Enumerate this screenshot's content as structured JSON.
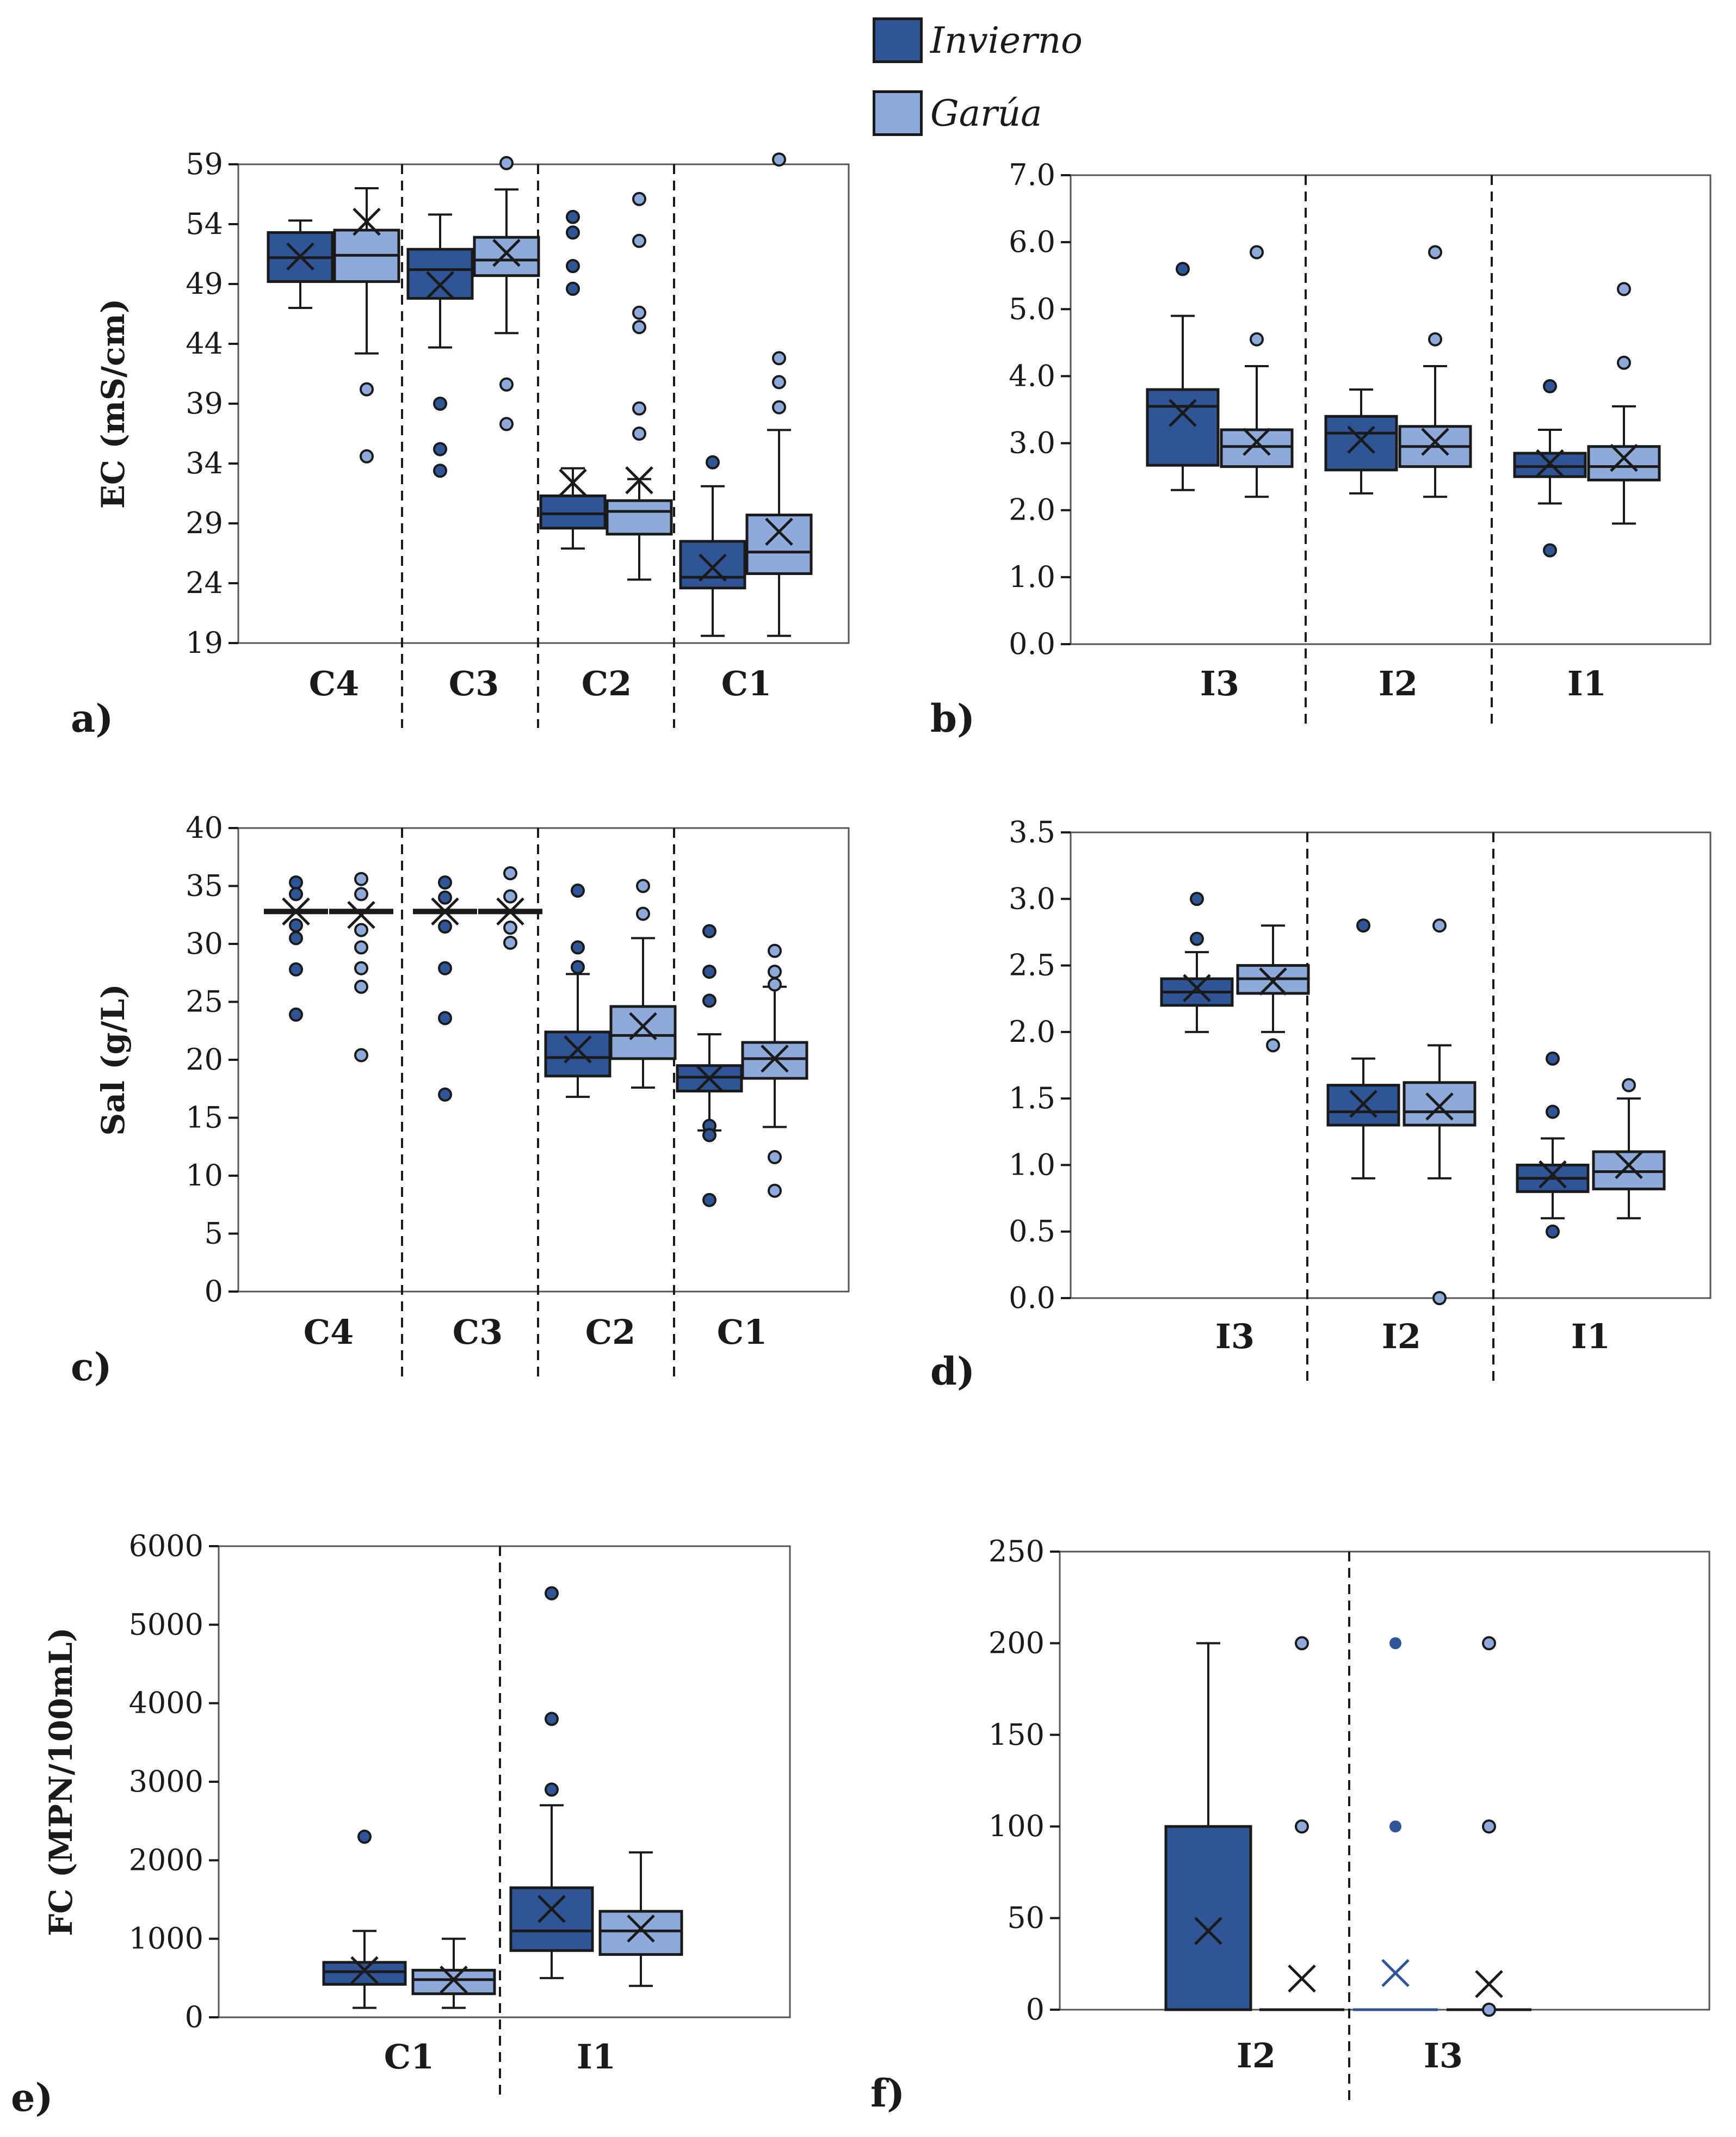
{
  "legend": {
    "items": [
      {
        "label": "Invierno",
        "color": "#2f5597"
      },
      {
        "label": "Garúa",
        "color": "#8eaadb"
      }
    ]
  },
  "colors": {
    "invierno": "#2f5597",
    "garua": "#8eaadb",
    "line": "#1a1a1a"
  },
  "chart_data": [
    {
      "panel": "a)",
      "type": "boxplot",
      "ylabel": "EC (mS/cm)",
      "ylim": [
        19,
        59
      ],
      "yticks": [
        "59",
        "54",
        "49",
        "44",
        "39",
        "34",
        "29",
        "24",
        "19"
      ],
      "groups": [
        {
          "label": "C4",
          "series": [
            {
              "name": "Invierno",
              "min": 47,
              "q1": 49.2,
              "median": 51.2,
              "q3": 53.3,
              "max": 54.3,
              "mean": 51.3,
              "outliers": []
            },
            {
              "name": "Garúa",
              "min": 43.2,
              "q1": 49.2,
              "median": 51.4,
              "q3": 53.5,
              "max": 57,
              "mean": 54.2,
              "outliers": [
                40.2,
                34.6
              ]
            }
          ]
        },
        {
          "label": "C3",
          "series": [
            {
              "name": "Invierno",
              "min": 43.7,
              "q1": 47.8,
              "median": 50.2,
              "q3": 51.9,
              "max": 54.8,
              "mean": 48.9,
              "outliers": [
                39,
                35.2,
                33.4
              ]
            },
            {
              "name": "Garúa",
              "min": 44.9,
              "q1": 49.7,
              "median": 51,
              "q3": 52.9,
              "max": 56.9,
              "mean": 51.6,
              "outliers": [
                59.1,
                40.6,
                37.3
              ]
            }
          ]
        },
        {
          "label": "C2",
          "series": [
            {
              "name": "Invierno",
              "min": 26.9,
              "q1": 28.6,
              "median": 29.8,
              "q3": 31.3,
              "max": 33.6,
              "mean": 32.4,
              "outliers": [
                54.6,
                53.3,
                50.5,
                48.6
              ]
            },
            {
              "name": "Garúa",
              "min": 24.3,
              "q1": 28.1,
              "median": 30,
              "q3": 30.9,
              "max": 32.7,
              "mean": 32.6,
              "outliers": [
                56.1,
                52.6,
                46.6,
                45.4,
                38.6,
                36.5
              ]
            }
          ]
        },
        {
          "label": "C1",
          "series": [
            {
              "name": "Invierno",
              "min": 19.6,
              "q1": 23.6,
              "median": 24.5,
              "q3": 27.5,
              "max": 32.1,
              "mean": 25.3,
              "outliers": [
                34.1
              ]
            },
            {
              "name": "Garúa",
              "min": 19.6,
              "q1": 24.8,
              "median": 26.6,
              "q3": 29.7,
              "max": 36.8,
              "mean": 28.3,
              "outliers": [
                59.4,
                42.8,
                40.8,
                38.7
              ]
            }
          ]
        }
      ]
    },
    {
      "panel": "b)",
      "type": "boxplot",
      "ylabel": "",
      "ylim": [
        0,
        7
      ],
      "yticks": [
        "7.0",
        "6.0",
        "5.0",
        "4.0",
        "3.0",
        "2.0",
        "1.0",
        "0.0"
      ],
      "groups": [
        {
          "label": "I3",
          "series": [
            {
              "name": "Invierno",
              "min": 2.3,
              "q1": 2.67,
              "median": 3.55,
              "q3": 3.8,
              "max": 4.9,
              "mean": 3.45,
              "outliers": [
                5.6
              ]
            },
            {
              "name": "Garúa",
              "min": 2.2,
              "q1": 2.65,
              "median": 2.95,
              "q3": 3.2,
              "max": 4.15,
              "mean": 3.02,
              "outliers": [
                5.85,
                4.55
              ]
            }
          ]
        },
        {
          "label": "I2",
          "series": [
            {
              "name": "Invierno",
              "min": 2.25,
              "q1": 2.6,
              "median": 3.15,
              "q3": 3.4,
              "max": 3.8,
              "mean": 3.05,
              "outliers": []
            },
            {
              "name": "Garúa",
              "min": 2.2,
              "q1": 2.65,
              "median": 2.95,
              "q3": 3.25,
              "max": 4.15,
              "mean": 3.02,
              "outliers": [
                5.85,
                4.55
              ]
            }
          ]
        },
        {
          "label": "I1",
          "series": [
            {
              "name": "Invierno",
              "min": 2.1,
              "q1": 2.5,
              "median": 2.65,
              "q3": 2.85,
              "max": 3.2,
              "mean": 2.7,
              "outliers": [
                3.85,
                1.4
              ]
            },
            {
              "name": "Garúa",
              "min": 1.8,
              "q1": 2.45,
              "median": 2.65,
              "q3": 2.95,
              "max": 3.55,
              "mean": 2.78,
              "outliers": [
                5.3,
                4.2
              ]
            }
          ]
        }
      ]
    },
    {
      "panel": "c)",
      "type": "boxplot",
      "ylabel": "Sal (g/L)",
      "ylim": [
        0,
        40
      ],
      "yticks": [
        "40",
        "35",
        "30",
        "25",
        "20",
        "15",
        "10",
        "5",
        "0"
      ],
      "groups": [
        {
          "label": "C4",
          "series": [
            {
              "name": "Invierno",
              "min": 32.8,
              "q1": 32.8,
              "median": 32.8,
              "q3": 32.8,
              "max": 32.8,
              "mean": 32.8,
              "outliers": [
                35.3,
                34.3,
                31.6,
                30.5,
                27.8,
                23.9
              ]
            },
            {
              "name": "Garúa",
              "min": 32.8,
              "q1": 32.8,
              "median": 32.8,
              "q3": 32.8,
              "max": 32.8,
              "mean": 32.5,
              "outliers": [
                35.6,
                34.3,
                31.2,
                29.7,
                27.9,
                26.3,
                20.4
              ]
            }
          ]
        },
        {
          "label": "C3",
          "series": [
            {
              "name": "Invierno",
              "min": 32.8,
              "q1": 32.8,
              "median": 32.8,
              "q3": 32.8,
              "max": 32.8,
              "mean": 32.8,
              "outliers": [
                35.3,
                34,
                31.5,
                27.9,
                23.6,
                17
              ]
            },
            {
              "name": "Garúa",
              "min": 32.8,
              "q1": 32.8,
              "median": 32.8,
              "q3": 32.8,
              "max": 32.8,
              "mean": 32.8,
              "outliers": [
                36.1,
                34.1,
                31.4,
                30.1
              ]
            }
          ]
        },
        {
          "label": "C2",
          "series": [
            {
              "name": "Invierno",
              "min": 16.8,
              "q1": 18.6,
              "median": 20.2,
              "q3": 22.4,
              "max": 27.4,
              "mean": 20.9,
              "outliers": [
                34.6,
                29.7,
                28
              ]
            },
            {
              "name": "Garúa",
              "min": 17.6,
              "q1": 20.1,
              "median": 22.1,
              "q3": 24.6,
              "max": 30.5,
              "mean": 22.9,
              "outliers": [
                35,
                32.6
              ]
            }
          ]
        },
        {
          "label": "C1",
          "series": [
            {
              "name": "Invierno",
              "min": 13.9,
              "q1": 17.3,
              "median": 18.5,
              "q3": 19.5,
              "max": 22.2,
              "mean": 18.4,
              "outliers": [
                31.1,
                27.6,
                25.1,
                14.3,
                13.5,
                7.9
              ]
            },
            {
              "name": "Garúa",
              "min": 14.2,
              "q1": 18.4,
              "median": 20.1,
              "q3": 21.5,
              "max": 26.3,
              "mean": 20.1,
              "outliers": [
                29.4,
                27.6,
                26.5,
                11.6,
                8.7
              ]
            }
          ]
        }
      ]
    },
    {
      "panel": "d)",
      "type": "boxplot",
      "ylabel": "",
      "ylim": [
        0,
        3.5
      ],
      "yticks": [
        "3.5",
        "3.0",
        "2.5",
        "2.0",
        "1.5",
        "1.0",
        "0.5",
        "0.0"
      ],
      "groups": [
        {
          "label": "I3",
          "series": [
            {
              "name": "Invierno",
              "min": 2.0,
              "q1": 2.2,
              "median": 2.3,
              "q3": 2.4,
              "max": 2.6,
              "mean": 2.33,
              "outliers": [
                3.0,
                2.7
              ]
            },
            {
              "name": "Garúa",
              "min": 2.0,
              "q1": 2.29,
              "median": 2.4,
              "q3": 2.5,
              "max": 2.8,
              "mean": 2.38,
              "outliers": [
                1.9
              ]
            }
          ]
        },
        {
          "label": "I2",
          "series": [
            {
              "name": "Invierno",
              "min": 0.9,
              "q1": 1.3,
              "median": 1.4,
              "q3": 1.6,
              "max": 1.8,
              "mean": 1.46,
              "outliers": [
                2.8
              ]
            },
            {
              "name": "Garúa",
              "min": 0.9,
              "q1": 1.3,
              "median": 1.4,
              "q3": 1.62,
              "max": 1.9,
              "mean": 1.44,
              "outliers": [
                2.8,
                0.0
              ]
            }
          ]
        },
        {
          "label": "I1",
          "series": [
            {
              "name": "Invierno",
              "min": 0.6,
              "q1": 0.8,
              "median": 0.9,
              "q3": 1.0,
              "max": 1.2,
              "mean": 0.93,
              "outliers": [
                1.8,
                1.4,
                0.5
              ]
            },
            {
              "name": "Garúa",
              "min": 0.6,
              "q1": 0.82,
              "median": 0.95,
              "q3": 1.1,
              "max": 1.5,
              "mean": 1.0,
              "outliers": [
                1.6
              ]
            }
          ]
        }
      ]
    },
    {
      "panel": "e)",
      "type": "boxplot",
      "ylabel": "FC (MPN/100mL)",
      "ylim": [
        0,
        6000
      ],
      "yticks": [
        "6000",
        "5000",
        "4000",
        "3000",
        "2000",
        "1000",
        "0"
      ],
      "groups": [
        {
          "label": "C1",
          "series": [
            {
              "name": "Invierno",
              "min": 120,
              "q1": 420,
              "median": 580,
              "q3": 700,
              "max": 1100,
              "mean": 600,
              "outliers": [
                2300
              ]
            },
            {
              "name": "Garúa",
              "min": 120,
              "q1": 300,
              "median": 480,
              "q3": 600,
              "max": 1000,
              "mean": 480,
              "outliers": []
            }
          ]
        },
        {
          "label": "I1",
          "series": [
            {
              "name": "Invierno",
              "min": 500,
              "q1": 850,
              "median": 1100,
              "q3": 1650,
              "max": 2700,
              "mean": 1380,
              "outliers": [
                5400,
                3800,
                2900
              ]
            },
            {
              "name": "Garúa",
              "min": 400,
              "q1": 800,
              "median": 1100,
              "q3": 1350,
              "max": 2100,
              "mean": 1130,
              "outliers": []
            }
          ]
        }
      ]
    },
    {
      "panel": "f)",
      "type": "boxplot",
      "ylabel": "",
      "ylim": [
        0,
        250
      ],
      "yticks": [
        "250",
        "200",
        "150",
        "100",
        "50",
        "0"
      ],
      "groups": [
        {
          "label": "I2",
          "series": [
            {
              "name": "Invierno",
              "min": 0,
              "q1": 0,
              "median": 0,
              "q3": 100,
              "max": 200,
              "mean": 43,
              "outliers": []
            },
            {
              "name": "Garúa",
              "min": 0,
              "q1": 0,
              "median": 0,
              "q3": 0,
              "max": 0,
              "mean": 17,
              "outliers": [
                200,
                100
              ]
            }
          ]
        },
        {
          "label": "I3",
          "series": [
            {
              "name": "Invierno",
              "min": 0,
              "q1": 0,
              "median": 0,
              "q3": 0,
              "max": 0,
              "mean": 20,
              "outliers": [
                200,
                100
              ]
            },
            {
              "name": "Garúa",
              "min": 0,
              "q1": 0,
              "median": 0,
              "q3": 0,
              "max": 0,
              "mean": 14,
              "outliers": [
                200,
                100,
                0
              ]
            }
          ]
        }
      ]
    }
  ]
}
